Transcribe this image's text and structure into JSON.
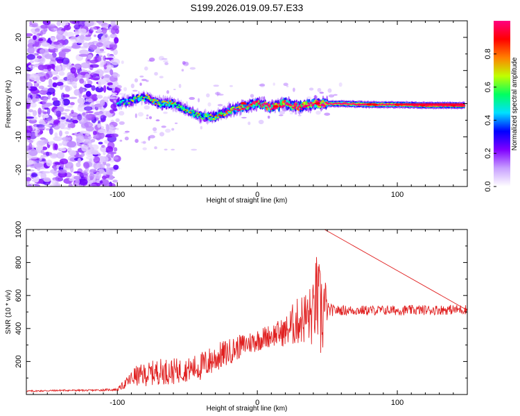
{
  "chart_data": [
    {
      "type": "heatmap",
      "title": "S199.2026.019.09.57.E33",
      "xlabel": "Height of straight line (km)",
      "ylabel": "Frequency (Hz)",
      "xlim": [
        -165,
        150
      ],
      "ylim": [
        -25,
        25
      ],
      "xticks": [
        -100,
        0,
        100
      ],
      "yticks": [
        -20,
        -10,
        0,
        10,
        20
      ],
      "colorbar": {
        "label": "Normalized spectral amplitude",
        "range": [
          0,
          1
        ],
        "ticks": [
          0.0,
          0.2,
          0.4,
          0.6,
          0.8
        ],
        "colormap": [
          "#ffffff",
          "#c8a0ff",
          "#8000ff",
          "#0000ff",
          "#00e0ff",
          "#00ff60",
          "#c0ff00",
          "#ff8000",
          "#ff0000",
          "#ff0080"
        ]
      },
      "ridge": {
        "description": "dominant frequency track",
        "x": [
          -100,
          -90,
          -80,
          -70,
          -60,
          -50,
          -40,
          -30,
          -20,
          -10,
          0,
          10,
          20,
          30,
          40,
          50,
          60,
          80,
          100,
          120,
          148
        ],
        "freq": [
          0,
          1,
          2,
          0,
          0,
          -2,
          -4,
          -4,
          -2,
          -1,
          0,
          -1,
          0,
          -1,
          0,
          0,
          0,
          -0.3,
          -0.3,
          -0.5,
          -0.5
        ],
        "amplitude": [
          0.35,
          0.4,
          0.45,
          0.45,
          0.5,
          0.45,
          0.45,
          0.5,
          0.55,
          0.65,
          0.7,
          0.75,
          0.8,
          0.75,
          0.8,
          0.8,
          0.85,
          0.9,
          0.9,
          0.95,
          0.95
        ]
      }
    },
    {
      "type": "line",
      "title": "",
      "xlabel": "Height of straight line (km)",
      "ylabel": "SNR (10 * v/v)",
      "xlim": [
        -165,
        150
      ],
      "ylim": [
        0,
        1000
      ],
      "xticks": [
        -100,
        0,
        100
      ],
      "yticks": [
        200,
        400,
        600,
        800,
        1000
      ],
      "series": [
        {
          "name": "SNR",
          "color": "#e02020",
          "x": [
            -165,
            -140,
            -120,
            -100,
            -92,
            -88,
            -80,
            -70,
            -60,
            -50,
            -40,
            -30,
            -20,
            -10,
            0,
            10,
            20,
            25,
            30,
            35,
            40,
            42,
            45,
            48,
            50,
            55,
            70,
            100,
            150
          ],
          "y": [
            20,
            25,
            25,
            30,
            80,
            110,
            120,
            140,
            140,
            150,
            170,
            220,
            260,
            300,
            330,
            360,
            380,
            420,
            450,
            470,
            480,
            600,
            480,
            520,
            510,
            510,
            510,
            510,
            515
          ],
          "noise_amplitude": [
            5,
            5,
            5,
            8,
            40,
            60,
            70,
            80,
            80,
            70,
            90,
            90,
            80,
            70,
            70,
            70,
            90,
            130,
            150,
            170,
            200,
            260,
            300,
            280,
            50,
            30,
            30,
            30,
            30
          ]
        }
      ]
    }
  ]
}
